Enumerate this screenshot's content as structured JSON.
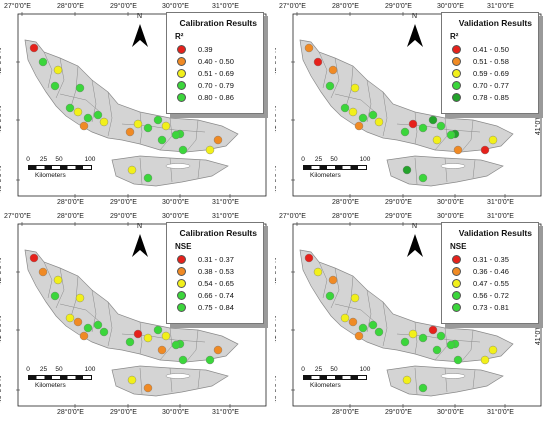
{
  "colors": {
    "land": "#d4d4d4",
    "boundary": "#8a8a8a",
    "red": "#e6211b",
    "orange": "#f08a24",
    "yellow": "#f2f01a",
    "lightgreen": "#3bd63b",
    "darkgreen": "#23a32b"
  },
  "scale": {
    "ticks": [
      "0",
      "25",
      "50",
      "100"
    ],
    "unit": "Kilometers"
  },
  "north_label": "N",
  "panels": [
    {
      "id": "p1",
      "legend": {
        "title": "Calibration Results",
        "subtitle": "R²",
        "items": [
          {
            "label": "0.39",
            "color": "#e6211b"
          },
          {
            "label": "0.40 - 0.50",
            "color": "#f08a24"
          },
          {
            "label": "0.51 - 0.69",
            "color": "#f2f01a"
          },
          {
            "label": "0.70 - 0.79",
            "color": "#3bd63b"
          },
          {
            "label": "0.80 - 0.86",
            "color": "#3bd63b"
          }
        ]
      },
      "top_labels": [
        "27°0'0\"E",
        "28°0'0\"E",
        "29°0'0\"E",
        "30°0'0\"E",
        "31°0'0\"E"
      ],
      "bottom_labels": [
        "28°0'0\"E",
        "29°0'0\"E",
        "30°0'0\"E",
        "31°0'0\"E"
      ],
      "left_labels": [
        "42°0'0\"N",
        "41°0'0\"N",
        "40°0'0\"N"
      ],
      "right_labels": []
    },
    {
      "id": "p2",
      "legend": {
        "title": "Validation Results",
        "subtitle": "R²",
        "items": [
          {
            "label": "0.41 - 0.50",
            "color": "#e6211b"
          },
          {
            "label": "0.51 - 0.58",
            "color": "#f08a24"
          },
          {
            "label": "0.59 - 0.69",
            "color": "#f2f01a"
          },
          {
            "label": "0.70 - 0.77",
            "color": "#3bd63b"
          },
          {
            "label": "0.78 - 0.85",
            "color": "#23a32b"
          }
        ]
      },
      "top_labels": [
        "27°0'0\"E",
        "28°0'0\"E",
        "29°0'0\"E",
        "30°0'0\"E",
        "31°0'0\"E"
      ],
      "bottom_labels": [
        "28°0'0\"E",
        "29°0'0\"E",
        "30°0'0\"E",
        "31°0'0\"E"
      ],
      "left_labels": [
        "42°0'0\"N",
        "41°0'0\"N",
        "40°0'0\"N"
      ],
      "right_labels": [
        "41°0'0\"N"
      ]
    },
    {
      "id": "p3",
      "legend": {
        "title": "Calibration Results",
        "subtitle": "NSE",
        "items": [
          {
            "label": "0.31 - 0.37",
            "color": "#e6211b"
          },
          {
            "label": "0.38 - 0.53",
            "color": "#f08a24"
          },
          {
            "label": "0.54 - 0.65",
            "color": "#f2f01a"
          },
          {
            "label": "0.66 - 0.74",
            "color": "#3bd63b"
          },
          {
            "label": "0.75 - 0.84",
            "color": "#3bd63b"
          }
        ]
      },
      "top_labels": [
        "27°0'0\"E",
        "28°0'0\"E",
        "29°0'0\"E",
        "30°0'0\"E",
        "31°0'0\"E"
      ],
      "bottom_labels": [
        "28°0'0\"E",
        "29°0'0\"E",
        "30°0'0\"E",
        "31°0'0\"E"
      ],
      "left_labels": [
        "42°0'0\"N",
        "41°0'0\"N",
        "40°0'0\"N"
      ],
      "right_labels": []
    },
    {
      "id": "p4",
      "legend": {
        "title": "Validation Results",
        "subtitle": "NSE",
        "items": [
          {
            "label": "0.31 - 0.35",
            "color": "#e6211b"
          },
          {
            "label": "0.36 - 0.46",
            "color": "#f08a24"
          },
          {
            "label": "0.47 - 0.55",
            "color": "#f2f01a"
          },
          {
            "label": "0.56 - 0.72",
            "color": "#3bd63b"
          },
          {
            "label": "0.73 - 0.81",
            "color": "#3bd63b"
          }
        ]
      },
      "top_labels": [
        "27°0'0\"E",
        "28°0'0\"E",
        "29°0'0\"E",
        "30°0'0\"E",
        "31°0'0\"E"
      ],
      "bottom_labels": [
        "28°0'0\"E",
        "29°0'0\"E",
        "30°0'0\"E",
        "31°0'0\"E"
      ],
      "left_labels": [
        "42°0'0\"N",
        "41°0'0\"N",
        "40°0'0\"N"
      ],
      "right_labels": [
        "41°0'0\"N"
      ]
    }
  ],
  "stations": [
    {
      "p1": "red",
      "p2": "orange",
      "p3": "red",
      "p4": "red"
    },
    {
      "p1": "green",
      "p2": "red",
      "p3": "orange",
      "p4": "yellow"
    },
    {
      "p1": "yellow",
      "p2": "orange",
      "p3": "yellow",
      "p4": "orange"
    },
    {
      "p1": "green",
      "p2": "green",
      "p3": "green",
      "p4": "green"
    },
    {
      "p1": "green",
      "p2": "yellow",
      "p3": "yellow",
      "p4": "yellow"
    },
    {
      "p1": "green",
      "p2": "green",
      "p3": "green",
      "p4": "green"
    },
    {
      "p1": "yellow",
      "p2": "yellow",
      "p3": "orange",
      "p4": "orange"
    },
    {
      "p1": "green",
      "p2": "green",
      "p3": "green",
      "p4": "green"
    },
    {
      "p1": "green",
      "p2": "green",
      "p3": "yellow",
      "p4": "yellow"
    },
    {
      "p1": "yellow",
      "p2": "yellow",
      "p3": "green",
      "p4": "green"
    },
    {
      "p1": "orange",
      "p2": "orange",
      "p3": "orange",
      "p4": "orange"
    },
    {
      "p1": "yellow",
      "p2": "red",
      "p3": "red",
      "p4": "yellow"
    },
    {
      "p1": "orange",
      "p2": "green",
      "p3": "green",
      "p4": "green"
    },
    {
      "p1": "green",
      "p2": "green",
      "p3": "yellow",
      "p4": "green"
    },
    {
      "p1": "green",
      "p2": "darkgreen",
      "p3": "green",
      "p4": "red"
    },
    {
      "p1": "yellow",
      "p2": "green",
      "p3": "yellow",
      "p4": "green"
    },
    {
      "p1": "green",
      "p2": "yellow",
      "p3": "orange",
      "p4": "green"
    },
    {
      "p1": "green",
      "p2": "darkgreen",
      "p3": "green",
      "p4": "green"
    },
    {
      "p1": "orange",
      "p2": "yellow",
      "p3": "orange",
      "p4": "yellow"
    },
    {
      "p1": "yellow",
      "p2": "red",
      "p3": "green",
      "p4": "yellow"
    },
    {
      "p1": "green",
      "p2": "orange",
      "p3": "green",
      "p4": "green"
    },
    {
      "p1": "green",
      "p2": "green",
      "p3": "green",
      "p4": "green"
    },
    {
      "p1": "yellow",
      "p2": "darkgreen",
      "p3": "yellow",
      "p4": "yellow"
    },
    {
      "p1": "green",
      "p2": "green",
      "p3": "orange",
      "p4": "green"
    }
  ]
}
